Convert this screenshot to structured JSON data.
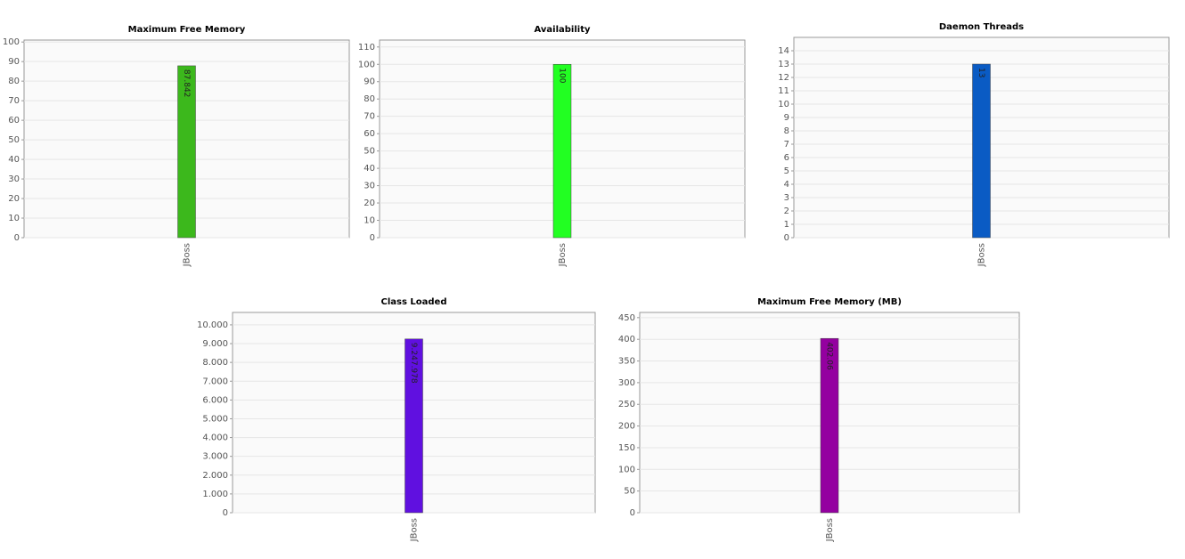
{
  "chart_data": [
    {
      "type": "bar",
      "title": "Maximum Free Memory",
      "categories": [
        "JBoss"
      ],
      "values": [
        87.842
      ],
      "color": "#3cb81c",
      "ylim": [
        0,
        101
      ],
      "yticks": [
        0,
        10,
        20,
        30,
        40,
        50,
        60,
        70,
        80,
        90,
        100
      ],
      "grid": true
    },
    {
      "type": "bar",
      "title": "Availability",
      "categories": [
        "JBoss"
      ],
      "values": [
        100
      ],
      "color": "#22ff22",
      "ylim": [
        0,
        114
      ],
      "yticks": [
        0,
        10,
        20,
        30,
        40,
        50,
        60,
        70,
        80,
        90,
        100,
        110
      ],
      "grid": true
    },
    {
      "type": "bar",
      "title": "Daemon Threads",
      "categories": [
        "JBoss"
      ],
      "values": [
        13
      ],
      "color": "#0a5bc4",
      "ylim": [
        0,
        15
      ],
      "yticks": [
        0,
        1,
        2,
        3,
        4,
        5,
        6,
        7,
        8,
        9,
        10,
        11,
        12,
        13,
        14
      ],
      "grid": true
    },
    {
      "type": "bar",
      "title": "Class Loaded",
      "categories": [
        "JBoss"
      ],
      "values": [
        9247.978
      ],
      "value_labels": [
        "9.247.978"
      ],
      "color": "#6010e0",
      "ylim": [
        0,
        10660
      ],
      "yticks": [
        0,
        {
          "value": 1000,
          "label": "1.000"
        },
        {
          "value": 2000,
          "label": "2.000"
        },
        {
          "value": 3000,
          "label": "3.000"
        },
        {
          "value": 4000,
          "label": "4.000"
        },
        {
          "value": 5000,
          "label": "5.000"
        },
        {
          "value": 6000,
          "label": "6.000"
        },
        {
          "value": 7000,
          "label": "7.000"
        },
        {
          "value": 8000,
          "label": "8.000"
        },
        {
          "value": 9000,
          "label": "9.000"
        },
        {
          "value": 10000,
          "label": "10.000"
        }
      ],
      "grid": true
    },
    {
      "type": "bar",
      "title": "Maximum Free Memory (MB)",
      "categories": [
        "JBoss"
      ],
      "values": [
        402.06
      ],
      "color": "#9400a0",
      "ylim": [
        0,
        462
      ],
      "yticks": [
        0,
        50,
        100,
        150,
        200,
        250,
        300,
        350,
        400,
        450
      ],
      "grid": true
    }
  ]
}
